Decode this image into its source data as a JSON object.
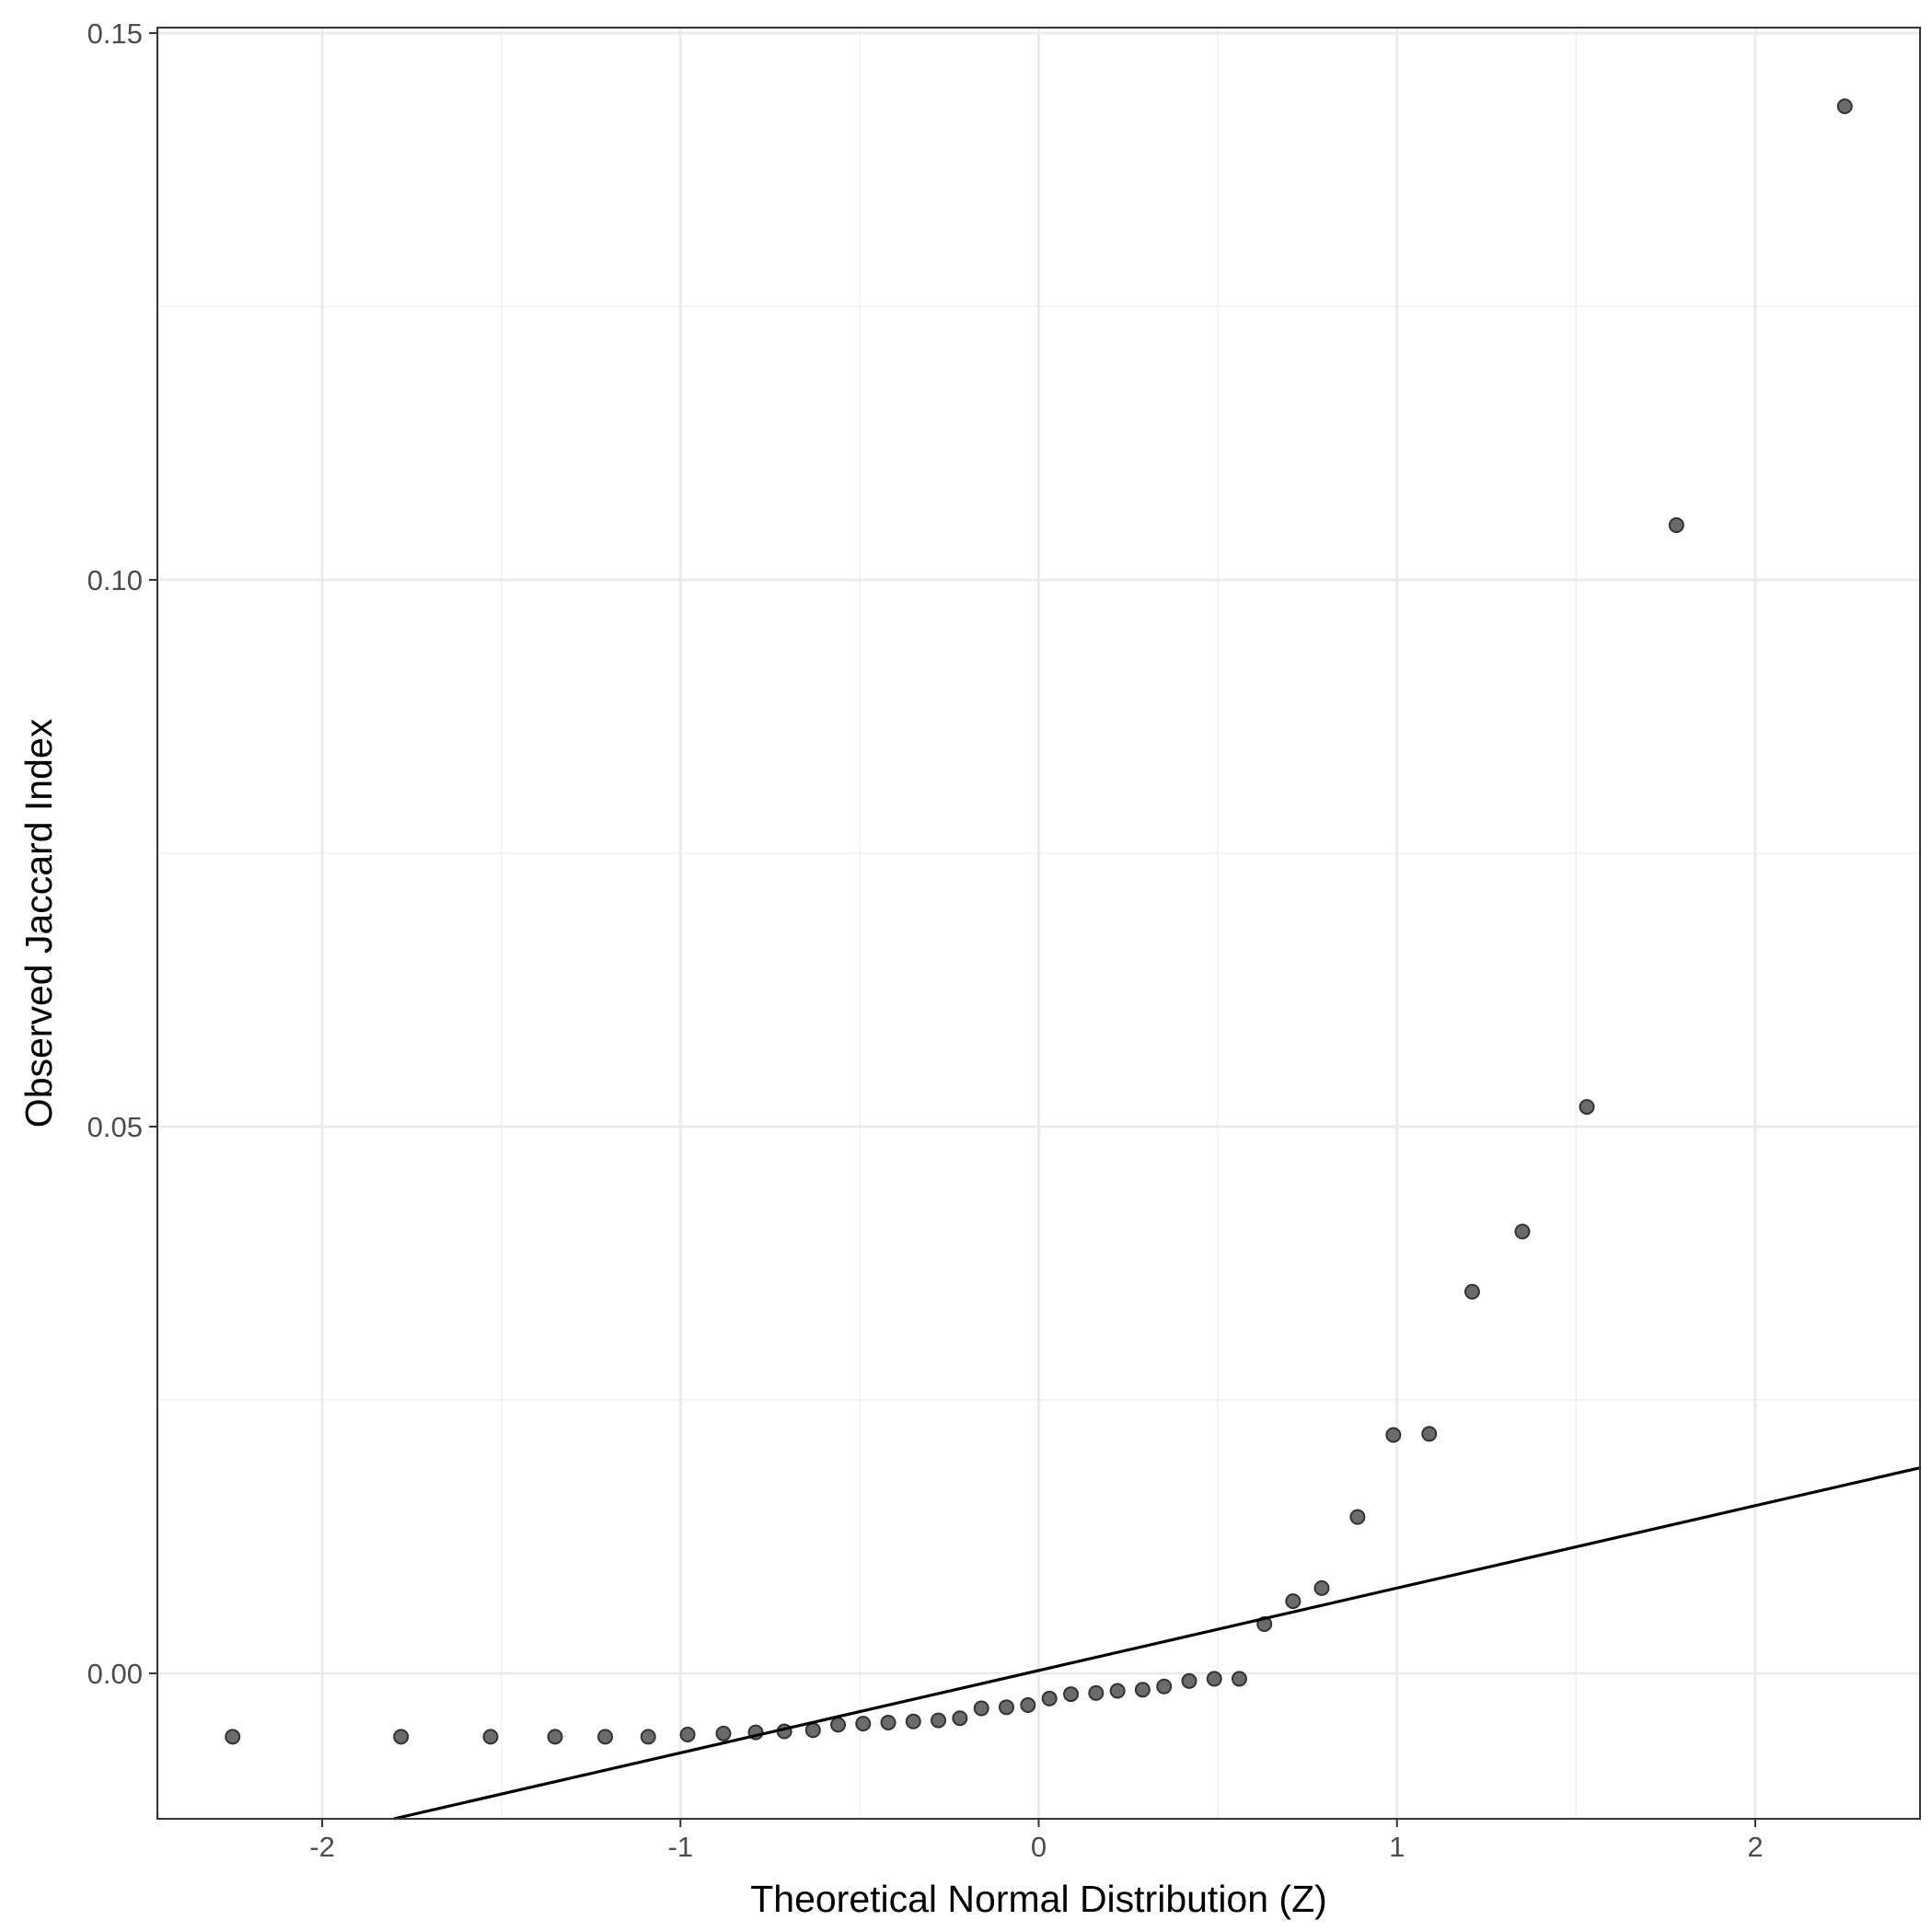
{
  "chart_data": {
    "type": "scatter",
    "title": "",
    "xlabel": "Theoretical Normal Distribution (Z)",
    "ylabel": "Observed Jaccard Index",
    "xlim": [
      -2.46,
      2.46
    ],
    "ylim": [
      -0.0133,
      0.1505
    ],
    "x_ticks": [
      -2,
      -1,
      0,
      1,
      2
    ],
    "x_tick_labels": [
      "-2",
      "-1",
      "0",
      "1",
      "2"
    ],
    "y_ticks": [
      0,
      0.05,
      0.1,
      0.15
    ],
    "y_tick_labels": [
      "0.00",
      "0.05",
      "0.10",
      "0.15"
    ],
    "grid": true,
    "point_color": "#6b6b6b",
    "point_stroke": "#333333",
    "line_color": "#000000",
    "reference_line": {
      "x": [
        -1.8,
        2.46
      ],
      "y": [
        -0.0133,
        0.0188
      ]
    },
    "points": [
      {
        "x": -2.25,
        "y": -0.0058
      },
      {
        "x": -1.78,
        "y": -0.0058
      },
      {
        "x": -1.53,
        "y": -0.0058
      },
      {
        "x": -1.35,
        "y": -0.0058
      },
      {
        "x": -1.21,
        "y": -0.0058
      },
      {
        "x": -1.09,
        "y": -0.0058
      },
      {
        "x": -0.98,
        "y": -0.0056
      },
      {
        "x": -0.88,
        "y": -0.0055
      },
      {
        "x": -0.79,
        "y": -0.0054
      },
      {
        "x": -0.71,
        "y": -0.0053
      },
      {
        "x": -0.63,
        "y": -0.0052
      },
      {
        "x": -0.56,
        "y": -0.0047
      },
      {
        "x": -0.49,
        "y": -0.0046
      },
      {
        "x": -0.42,
        "y": -0.0045
      },
      {
        "x": -0.35,
        "y": -0.0044
      },
      {
        "x": -0.28,
        "y": -0.0043
      },
      {
        "x": -0.22,
        "y": -0.0041
      },
      {
        "x": -0.16,
        "y": -0.0032
      },
      {
        "x": -0.09,
        "y": -0.0031
      },
      {
        "x": -0.03,
        "y": -0.0029
      },
      {
        "x": 0.03,
        "y": -0.0023
      },
      {
        "x": 0.09,
        "y": -0.0019
      },
      {
        "x": 0.16,
        "y": -0.0018
      },
      {
        "x": 0.22,
        "y": -0.0016
      },
      {
        "x": 0.29,
        "y": -0.0015
      },
      {
        "x": 0.35,
        "y": -0.0012
      },
      {
        "x": 0.42,
        "y": -0.0007
      },
      {
        "x": 0.49,
        "y": -0.0005
      },
      {
        "x": 0.56,
        "y": -0.0005
      },
      {
        "x": 0.63,
        "y": 0.0045
      },
      {
        "x": 0.71,
        "y": 0.0066
      },
      {
        "x": 0.79,
        "y": 0.0078
      },
      {
        "x": 0.89,
        "y": 0.0143
      },
      {
        "x": 0.99,
        "y": 0.0218
      },
      {
        "x": 1.09,
        "y": 0.0219
      },
      {
        "x": 1.21,
        "y": 0.0349
      },
      {
        "x": 1.35,
        "y": 0.0404
      },
      {
        "x": 1.53,
        "y": 0.0518
      },
      {
        "x": 1.78,
        "y": 0.105
      },
      {
        "x": 2.25,
        "y": 0.1433
      }
    ]
  }
}
